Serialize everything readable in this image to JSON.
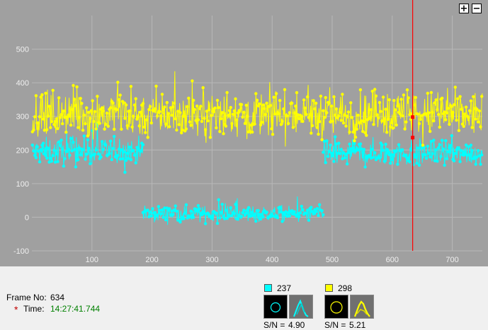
{
  "zoom": {
    "plus_label": "+",
    "minus_label": "−"
  },
  "chart_data": {
    "type": "line",
    "x_range": [
      0,
      750
    ],
    "ylim": [
      -100,
      600
    ],
    "xticks": [
      100,
      200,
      300,
      400,
      500,
      600,
      700
    ],
    "yticks": [
      -100,
      0,
      100,
      200,
      300,
      400,
      500
    ],
    "grid": true,
    "cursor_x": 634,
    "series": [
      {
        "color": "#ffff00",
        "segments": [
          {
            "x_start": 1,
            "x_end": 750,
            "baseline": 305,
            "noise": 60
          }
        ]
      },
      {
        "color": "#00ffff",
        "segments": [
          {
            "x_start": 1,
            "x_end": 185,
            "baseline": 195,
            "noise": 35
          },
          {
            "x_start": 185,
            "x_end": 485,
            "baseline": 10,
            "noise": 20
          },
          {
            "x_start": 485,
            "x_end": 750,
            "baseline": 190,
            "noise": 35
          }
        ]
      }
    ],
    "colors": {
      "background": "#a0a0a0",
      "grid": "#b8b8b8",
      "axis_text": "#f0f0f0",
      "cursor": "#ff0000"
    }
  },
  "info": {
    "frame_label": "Frame No:",
    "frame_value": "634",
    "time_marker": "*",
    "time_label": "Time:",
    "time_value": "14:27:41.744"
  },
  "channels": [
    {
      "color": "#00ffff",
      "value": "237",
      "sn_label": "S/N =",
      "sn_value": "4.90"
    },
    {
      "color": "#ffff00",
      "value": "298",
      "sn_label": "S/N =",
      "sn_value": "5.21"
    }
  ]
}
